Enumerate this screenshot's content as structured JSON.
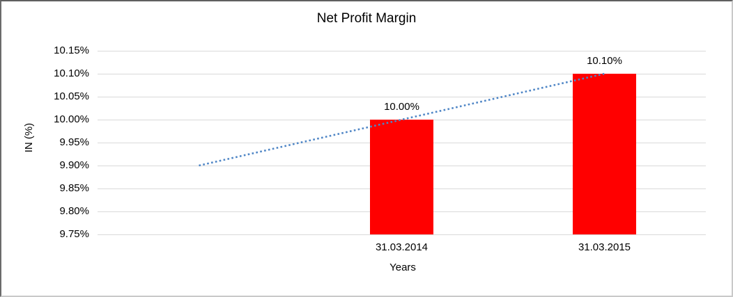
{
  "chart_data": {
    "type": "bar",
    "title": "Net Profit Margin",
    "xlabel": "Years",
    "ylabel": "IN (%)",
    "categories": [
      "31.03.2014",
      "31.03.2015"
    ],
    "values": [
      10.0,
      10.1
    ],
    "data_labels": [
      "10.00%",
      "10.10%"
    ],
    "series": [
      {
        "name": "Net Profit Margin",
        "values": [
          10.0,
          10.1
        ]
      }
    ],
    "y_ticks": [
      9.75,
      9.8,
      9.85,
      9.9,
      9.95,
      10.0,
      10.05,
      10.1,
      10.15
    ],
    "y_tick_labels": [
      "9.75%",
      "9.80%",
      "9.85%",
      "9.90%",
      "9.95%",
      "10.00%",
      "10.05%",
      "10.10%",
      "10.15%"
    ],
    "ylim": [
      9.75,
      10.15
    ],
    "grid": true,
    "legend": "none",
    "bar_color": "#ff0000",
    "gridline_color": "#d9d9d9",
    "text_color": "#000000",
    "n_category_slots": 3,
    "bar_slots": [
      1,
      2
    ],
    "trendline": {
      "type": "linear",
      "style": "dotted",
      "color": "#4f86c6",
      "start": {
        "slot": 0,
        "value": 9.9
      },
      "end": {
        "slot": 2,
        "value": 10.1
      }
    }
  }
}
